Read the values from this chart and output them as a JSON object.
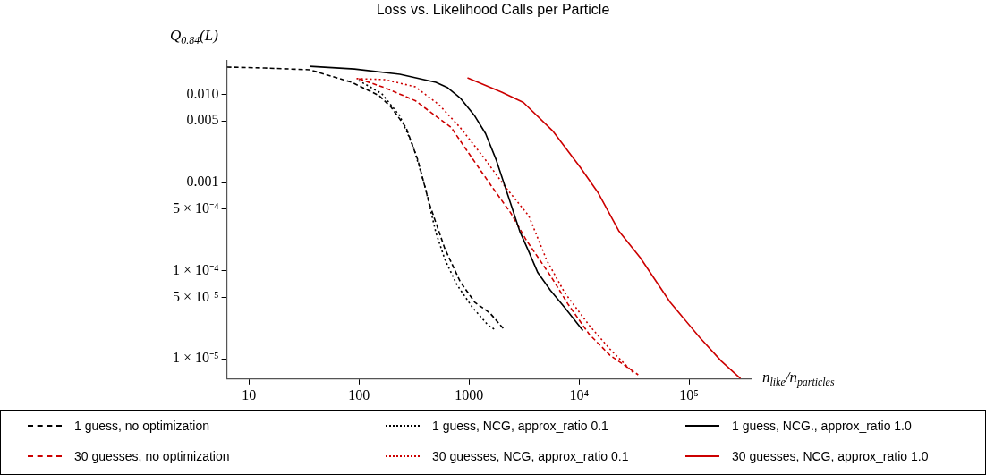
{
  "chart_data": {
    "type": "line",
    "title": "Loss vs. Likelihood Calls per Particle",
    "ylabel": "Q$_{0.84}$(L)",
    "xlabel": "n$_{like}$/n$_{particles}$",
    "log": "xy",
    "grid": false,
    "legend": "bottom",
    "marker": "none",
    "xlim": [
      6.3,
      370000
    ],
    "ylim": [
      5.9e-06,
      0.024
    ],
    "xticks": [
      10,
      100,
      1000,
      {
        "value": 10000,
        "label": "10⁴"
      },
      {
        "value": 100000,
        "label": "10⁵"
      }
    ],
    "yticks": [
      {
        "value": 0.01,
        "label": "0.010"
      },
      {
        "value": 0.005,
        "label": "0.005"
      },
      {
        "value": 0.001,
        "label": "0.001"
      },
      {
        "value": 0.0005,
        "label": "5 × 10⁻⁴"
      },
      {
        "value": 0.0001,
        "label": "1 × 10⁻⁴"
      },
      {
        "value": 5e-05,
        "label": "5 × 10⁻⁵"
      },
      {
        "value": 1e-05,
        "label": "1 × 10⁻⁵"
      }
    ],
    "series": [
      {
        "name": "1 guess, no optimization",
        "color": "#000000",
        "line_style": "dashed",
        "x": [
          6.3,
          13.9,
          35.6,
          49,
          86,
          152,
          195,
          268,
          343,
          439,
          604,
          832,
          1127,
          1553,
          2060
        ],
        "values": [
          0.0204,
          0.0199,
          0.019,
          0.0169,
          0.0137,
          0.0097,
          0.0072,
          0.0042,
          0.00179,
          0.00056,
          0.000177,
          7.5e-05,
          4.4e-05,
          3.3e-05,
          2.2e-05
        ]
      },
      {
        "name": "1 guess, NCG, approx_ratio 0.1",
        "color": "#000000",
        "line_style": "dotted",
        "x": [
          99,
          161,
          235,
          312,
          399,
          500,
          604,
          772,
          1065,
          1496,
          1772
        ],
        "values": [
          0.0144,
          0.0102,
          0.0057,
          0.00254,
          0.00089,
          0.00027,
          0.000134,
          7e-05,
          3.9e-05,
          2.4e-05,
          2.1e-05
        ]
      },
      {
        "name": "1 guess, NCG., approx_ratio 1.0",
        "color": "#000000",
        "line_style": "solid",
        "x": [
          35.6,
          91,
          235,
          500,
          640,
          832,
          1127,
          1413,
          1772,
          2263,
          2893,
          3490,
          4220,
          5490,
          7430,
          10840
        ],
        "values": [
          0.0208,
          0.0194,
          0.0169,
          0.0137,
          0.0119,
          0.0091,
          0.0057,
          0.0036,
          0.00179,
          0.00071,
          0.00028,
          0.000165,
          9.5e-05,
          6e-05,
          3.8e-05,
          2.1e-05
        ]
      },
      {
        "name": "30 guesses, no optimization",
        "color": "#cc0000",
        "line_style": "dashed",
        "x": [
          100,
          171,
          324,
          690,
          1007,
          1553,
          2400,
          3310,
          5490,
          8020,
          12390,
          19100,
          34500
        ],
        "values": [
          0.015,
          0.0119,
          0.0085,
          0.0042,
          0.0021,
          0.00096,
          0.00045,
          0.000223,
          8.8e-05,
          4.1e-05,
          1.9e-05,
          1.1e-05,
          6.6e-06
        ]
      },
      {
        "name": "30 guesses, NCG, approx_ratio 0.1",
        "color": "#cc0000",
        "line_style": "dotted",
        "x": [
          95,
          171,
          324,
          530,
          832,
          1362,
          2140,
          3490,
          5090,
          7430,
          12390,
          19100,
          31500
        ],
        "values": [
          0.0151,
          0.0147,
          0.0122,
          0.0077,
          0.0042,
          0.00192,
          0.00089,
          0.00042,
          0.000131,
          5.6e-05,
          2.4e-05,
          1.29e-05,
          6.9e-06
        ]
      },
      {
        "name": "30 guesses, NCG, approx_ratio 1.0",
        "color": "#cc0000",
        "line_style": "solid",
        "x": [
          968,
          1980,
          3120,
          5820,
          10250,
          14960,
          23100,
          36100,
          67200,
          125000,
          197000,
          293000
        ],
        "values": [
          0.0154,
          0.0106,
          0.0081,
          0.0038,
          0.00149,
          0.00076,
          0.00028,
          0.00014,
          4.4e-05,
          1.75e-05,
          9.4e-06,
          6e-06
        ]
      }
    ]
  }
}
